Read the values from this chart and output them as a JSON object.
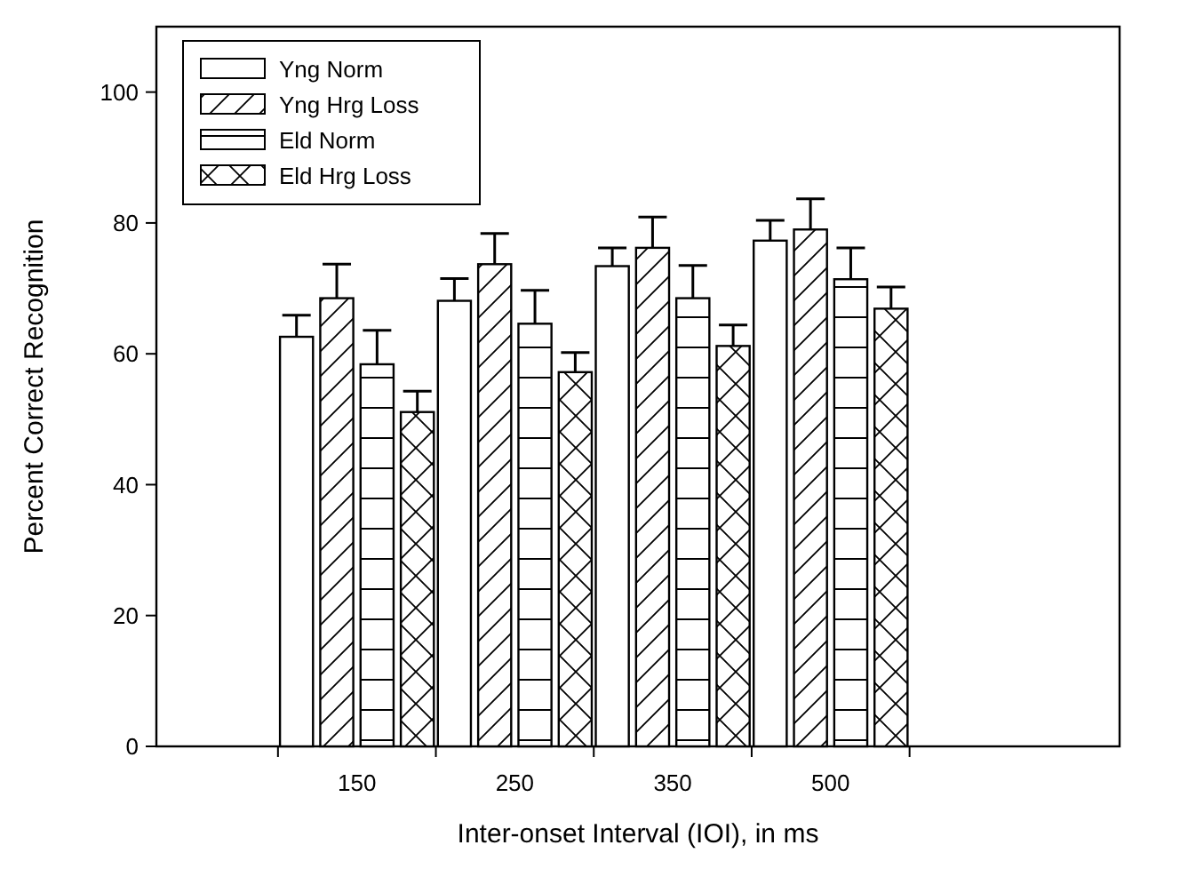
{
  "chart_data": {
    "type": "bar",
    "xlabel": "Inter-onset Interval (IOI), in ms",
    "ylabel": "Percent Correct Recognition",
    "categories": [
      "150",
      "250",
      "350",
      "500"
    ],
    "ylim": [
      0,
      110
    ],
    "yticks": [
      0,
      20,
      40,
      60,
      80,
      100
    ],
    "legend": "top left",
    "grid": false,
    "series": [
      {
        "name": "Yng Norm",
        "color": "#000000",
        "values": [
          62.6,
          68.1,
          73.4,
          77.3
        ],
        "errors": [
          [
            62.6,
            65.9
          ],
          [
            68.1,
            71.5
          ],
          [
            73.4,
            76.2
          ],
          [
            77.3,
            80.4
          ]
        ]
      },
      {
        "name": "Yng Hrg Loss",
        "color": "#000000",
        "values": [
          68.5,
          73.7,
          76.2,
          79.0
        ],
        "errors": [
          [
            68.5,
            73.7
          ],
          [
            73.7,
            78.4
          ],
          [
            76.2,
            80.9
          ],
          [
            79.0,
            83.7
          ]
        ]
      },
      {
        "name": "Eld Norm",
        "color": "#000000",
        "values": [
          58.4,
          64.6,
          68.5,
          71.4
        ],
        "errors": [
          [
            58.4,
            63.6
          ],
          [
            64.6,
            69.7
          ],
          [
            68.5,
            73.5
          ],
          [
            71.4,
            76.2
          ]
        ]
      },
      {
        "name": "Eld Hrg Loss",
        "color": "#000000",
        "values": [
          51.1,
          57.2,
          61.2,
          66.9
        ],
        "errors": [
          [
            51.1,
            54.3
          ],
          [
            57.2,
            60.2
          ],
          [
            61.2,
            64.4
          ],
          [
            66.9,
            70.2
          ]
        ]
      }
    ]
  }
}
